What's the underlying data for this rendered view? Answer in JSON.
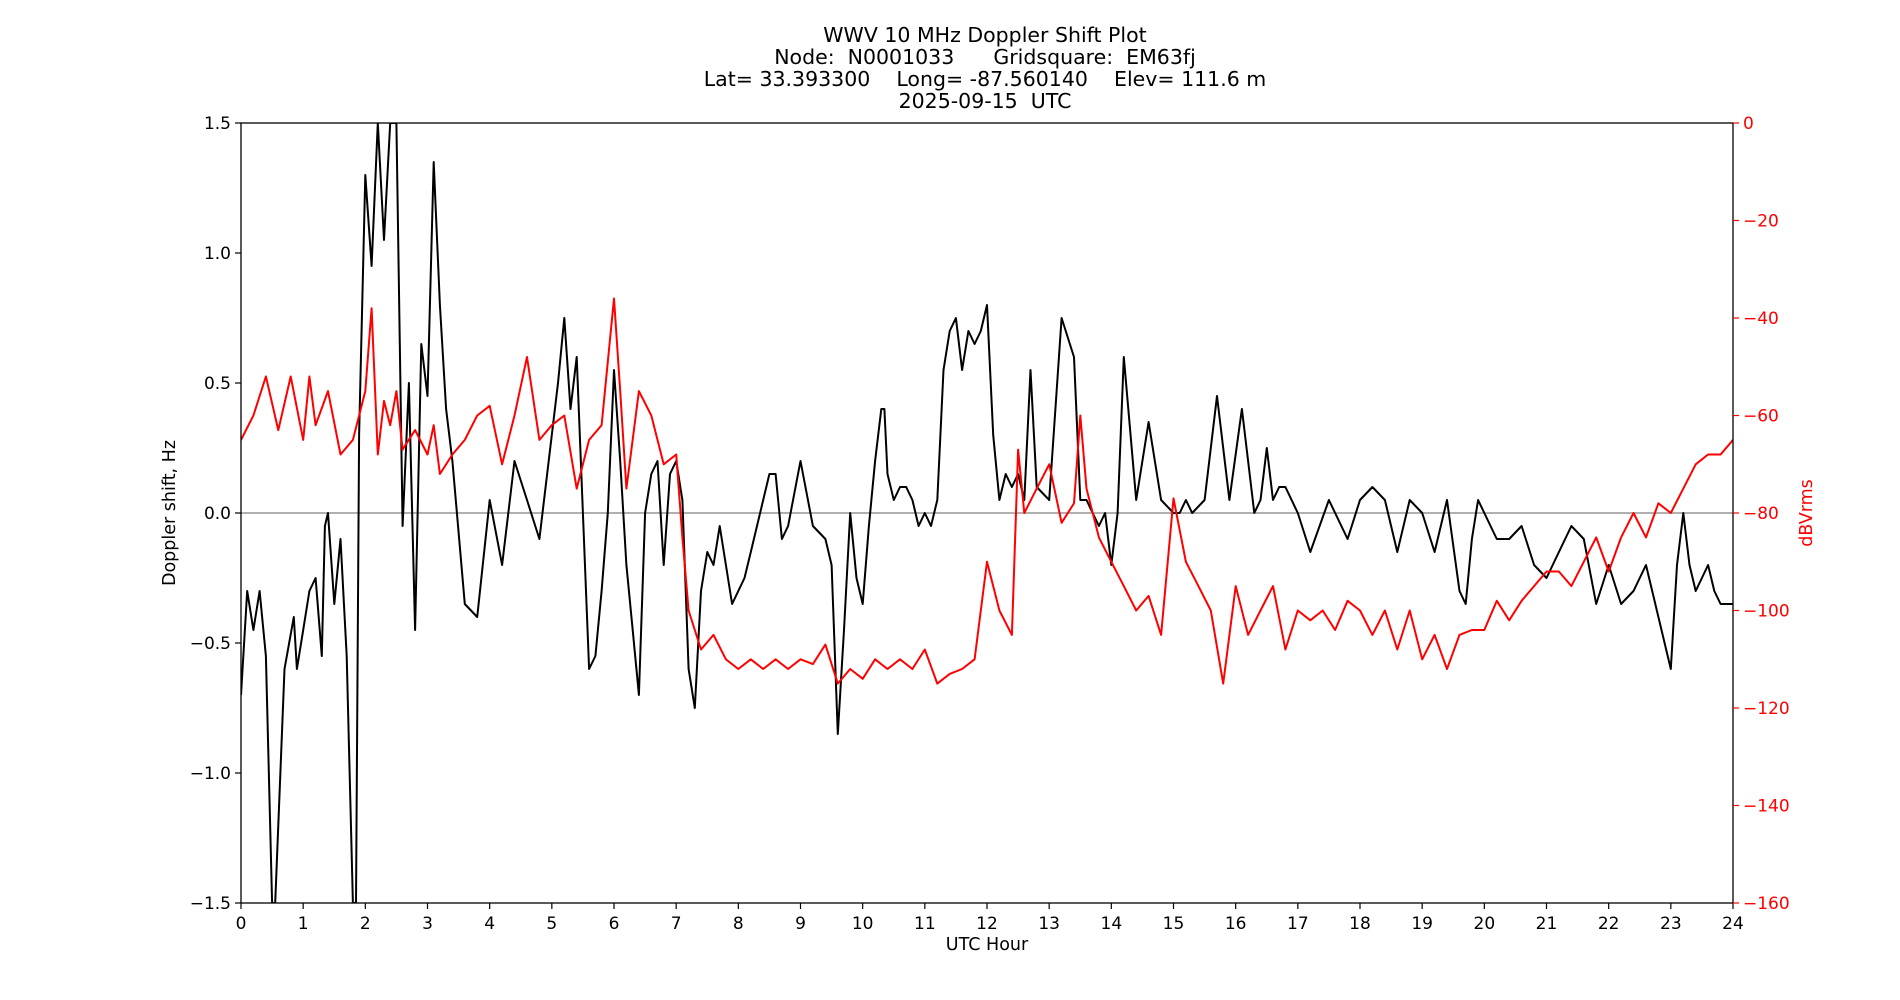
{
  "chart_data": {
    "type": "line",
    "title": [
      "WWV 10 MHz Doppler Shift Plot",
      "Node:  N0001033      Gridsquare:  EM63fj",
      "Lat= 33.393300    Long= -87.560140    Elev= 111.6 m",
      "2025-09-15  UTC"
    ],
    "xlabel": "UTC Hour",
    "ylabel_left": "Doppler shift, Hz",
    "ylabel_right": "dBVrms",
    "xlim": [
      0,
      24
    ],
    "ylim_left": [
      -1.5,
      1.5
    ],
    "ylim_right": [
      -160,
      0
    ],
    "x_ticks": [
      "0",
      "1",
      "2",
      "3",
      "4",
      "5",
      "6",
      "7",
      "8",
      "9",
      "10",
      "11",
      "12",
      "13",
      "14",
      "15",
      "16",
      "17",
      "18",
      "19",
      "20",
      "21",
      "22",
      "23",
      "24"
    ],
    "y_ticks_left": [
      "1.5",
      "1.0",
      "0.5",
      "0.0",
      "−0.5",
      "−1.0",
      "−1.5"
    ],
    "y_ticks_right": [
      "0",
      "−20",
      "−40",
      "−60",
      "−80",
      "−100",
      "−120",
      "−140",
      "−160"
    ],
    "zero_line": 0.0,
    "colors": {
      "doppler": "#000000",
      "power": "#ff0000",
      "zero_line": "#808080"
    },
    "series": [
      {
        "axis": "left",
        "x": [
          0,
          0.1,
          0.2,
          0.3,
          0.4,
          0.5,
          0.55,
          0.7,
          0.85,
          0.9,
          1.0,
          1.1,
          1.2,
          1.3,
          1.35,
          1.4,
          1.5,
          1.6,
          1.7,
          1.8,
          1.85,
          1.9,
          2.0,
          2.1,
          2.2,
          2.3,
          2.4,
          2.5,
          2.6,
          2.7,
          2.8,
          2.9,
          3.0,
          3.1,
          3.2,
          3.3,
          3.4,
          3.6,
          3.8,
          4.0,
          4.2,
          4.4,
          4.6,
          4.8,
          5.0,
          5.1,
          5.2,
          5.3,
          5.4,
          5.5,
          5.6,
          5.7,
          5.8,
          5.9,
          6.0,
          6.1,
          6.2,
          6.3,
          6.4,
          6.5,
          6.6,
          6.7,
          6.8,
          6.9,
          7.0,
          7.1,
          7.2,
          7.3,
          7.4,
          7.5,
          7.6,
          7.7,
          7.8,
          7.9,
          8.0,
          8.1,
          8.2,
          8.3,
          8.4,
          8.5,
          8.6,
          8.7,
          8.8,
          9.0,
          9.2,
          9.4,
          9.5,
          9.6,
          9.7,
          9.8,
          9.9,
          10.0,
          10.1,
          10.2,
          10.3,
          10.35,
          10.4,
          10.5,
          10.6,
          10.7,
          10.8,
          10.9,
          11.0,
          11.1,
          11.2,
          11.3,
          11.4,
          11.5,
          11.6,
          11.7,
          11.8,
          11.9,
          12.0,
          12.1,
          12.2,
          12.3,
          12.4,
          12.5,
          12.6,
          12.7,
          12.8,
          13.0,
          13.2,
          13.4,
          13.5,
          13.6,
          13.7,
          13.8,
          13.9,
          14.0,
          14.1,
          14.2,
          14.4,
          14.6,
          14.8,
          15.0,
          15.1,
          15.2,
          15.3,
          15.5,
          15.7,
          15.9,
          16.1,
          16.3,
          16.4,
          16.5,
          16.6,
          16.7,
          16.8,
          17.0,
          17.2,
          17.5,
          17.8,
          18.0,
          18.2,
          18.4,
          18.6,
          18.8,
          19.0,
          19.2,
          19.4,
          19.6,
          19.7,
          19.8,
          19.9,
          20.0,
          20.2,
          20.4,
          20.6,
          20.8,
          21.0,
          21.2,
          21.4,
          21.6,
          21.8,
          22.0,
          22.2,
          22.4,
          22.6,
          22.8,
          23.0,
          23.1,
          23.2,
          23.3,
          23.4,
          23.5,
          23.6,
          23.7,
          23.8,
          23.9,
          24.0
        ],
        "y": [
          -0.7,
          -0.3,
          -0.45,
          -0.3,
          -0.55,
          -1.5,
          -1.5,
          -0.6,
          -0.4,
          -0.6,
          -0.45,
          -0.3,
          -0.25,
          -0.55,
          -0.05,
          0.0,
          -0.35,
          -0.1,
          -0.55,
          -1.5,
          -1.5,
          0.3,
          1.3,
          0.95,
          1.5,
          1.05,
          1.5,
          1.5,
          -0.05,
          0.5,
          -0.45,
          0.65,
          0.45,
          1.35,
          0.8,
          0.4,
          0.2,
          -0.35,
          -0.4,
          0.05,
          -0.2,
          0.2,
          0.05,
          -0.1,
          0.3,
          0.5,
          0.75,
          0.4,
          0.6,
          0.0,
          -0.6,
          -0.55,
          -0.3,
          0.0,
          0.55,
          0.2,
          -0.2,
          -0.45,
          -0.7,
          0.0,
          0.15,
          0.2,
          -0.2,
          0.15,
          0.2,
          0.05,
          -0.6,
          -0.75,
          -0.3,
          -0.15,
          -0.2,
          -0.05,
          -0.2,
          -0.35,
          -0.3,
          -0.25,
          -0.15,
          -0.05,
          0.05,
          0.15,
          0.15,
          -0.1,
          -0.05,
          0.2,
          -0.05,
          -0.1,
          -0.2,
          -0.85,
          -0.45,
          0.0,
          -0.25,
          -0.35,
          -0.05,
          0.2,
          0.4,
          0.4,
          0.15,
          0.05,
          0.1,
          0.1,
          0.05,
          -0.05,
          0.0,
          -0.05,
          0.05,
          0.55,
          0.7,
          0.75,
          0.55,
          0.7,
          0.65,
          0.7,
          0.8,
          0.3,
          0.05,
          0.15,
          0.1,
          0.15,
          0.05,
          0.55,
          0.1,
          0.05,
          0.75,
          0.6,
          0.05,
          0.05,
          0.0,
          -0.05,
          0.0,
          -0.2,
          0.0,
          0.6,
          0.05,
          0.35,
          0.05,
          0.0,
          0.0,
          0.05,
          0.0,
          0.05,
          0.45,
          0.05,
          0.4,
          0.0,
          0.05,
          0.25,
          0.05,
          0.1,
          0.1,
          0.0,
          -0.15,
          0.05,
          -0.1,
          0.05,
          0.1,
          0.05,
          -0.15,
          0.05,
          0.0,
          -0.15,
          0.05,
          -0.3,
          -0.35,
          -0.1,
          0.05,
          0.0,
          -0.1,
          -0.1,
          -0.05,
          -0.2,
          -0.25,
          -0.15,
          -0.05,
          -0.1,
          -0.35,
          -0.2,
          -0.35,
          -0.3,
          -0.2,
          -0.4,
          -0.6,
          -0.2,
          0.0,
          -0.2,
          -0.3,
          -0.25,
          -0.2,
          -0.3,
          -0.35,
          -0.35,
          -0.35
        ]
      },
      {
        "axis": "right",
        "x": [
          0,
          0.2,
          0.4,
          0.6,
          0.8,
          1.0,
          1.1,
          1.2,
          1.4,
          1.6,
          1.8,
          2.0,
          2.1,
          2.2,
          2.3,
          2.4,
          2.5,
          2.6,
          2.8,
          3.0,
          3.1,
          3.2,
          3.4,
          3.6,
          3.8,
          4.0,
          4.2,
          4.4,
          4.6,
          4.8,
          5.0,
          5.2,
          5.4,
          5.6,
          5.8,
          6.0,
          6.1,
          6.2,
          6.4,
          6.6,
          6.8,
          7.0,
          7.1,
          7.2,
          7.4,
          7.6,
          7.8,
          8.0,
          8.2,
          8.4,
          8.6,
          8.8,
          9.0,
          9.2,
          9.4,
          9.6,
          9.8,
          10.0,
          10.2,
          10.4,
          10.6,
          10.8,
          11.0,
          11.2,
          11.4,
          11.6,
          11.8,
          12.0,
          12.2,
          12.4,
          12.5,
          12.6,
          12.8,
          13.0,
          13.2,
          13.4,
          13.5,
          13.6,
          13.8,
          14.0,
          14.2,
          14.4,
          14.6,
          14.8,
          15.0,
          15.2,
          15.4,
          15.6,
          15.8,
          16.0,
          16.2,
          16.4,
          16.6,
          16.8,
          17.0,
          17.2,
          17.4,
          17.6,
          17.8,
          18.0,
          18.2,
          18.4,
          18.6,
          18.8,
          19.0,
          19.2,
          19.4,
          19.6,
          19.8,
          20.0,
          20.2,
          20.4,
          20.6,
          20.8,
          21.0,
          21.2,
          21.4,
          21.6,
          21.8,
          22.0,
          22.2,
          22.4,
          22.6,
          22.8,
          23.0,
          23.2,
          23.4,
          23.6,
          23.8,
          24.0
        ],
        "y": [
          -65,
          -60,
          -52,
          -63,
          -52,
          -65,
          -52,
          -62,
          -55,
          -68,
          -65,
          -55,
          -38,
          -68,
          -57,
          -62,
          -55,
          -67,
          -63,
          -68,
          -62,
          -72,
          -68,
          -65,
          -60,
          -58,
          -70,
          -60,
          -48,
          -65,
          -62,
          -60,
          -75,
          -65,
          -62,
          -36,
          -55,
          -75,
          -55,
          -60,
          -70,
          -68,
          -85,
          -100,
          -108,
          -105,
          -110,
          -112,
          -110,
          -112,
          -110,
          -112,
          -110,
          -111,
          -107,
          -115,
          -112,
          -114,
          -110,
          -112,
          -110,
          -112,
          -108,
          -115,
          -113,
          -112,
          -110,
          -90,
          -100,
          -105,
          -67,
          -80,
          -75,
          -70,
          -82,
          -78,
          -60,
          -75,
          -85,
          -90,
          -95,
          -100,
          -97,
          -105,
          -77,
          -90,
          -95,
          -100,
          -115,
          -95,
          -105,
          -100,
          -95,
          -108,
          -100,
          -102,
          -100,
          -104,
          -98,
          -100,
          -105,
          -100,
          -108,
          -100,
          -110,
          -105,
          -112,
          -105,
          -104,
          -104,
          -98,
          -102,
          -98,
          -95,
          -92,
          -92,
          -95,
          -90,
          -85,
          -92,
          -85,
          -80,
          -85,
          -78,
          -80,
          -75,
          -70,
          -68,
          -68,
          -65
        ]
      }
    ]
  }
}
